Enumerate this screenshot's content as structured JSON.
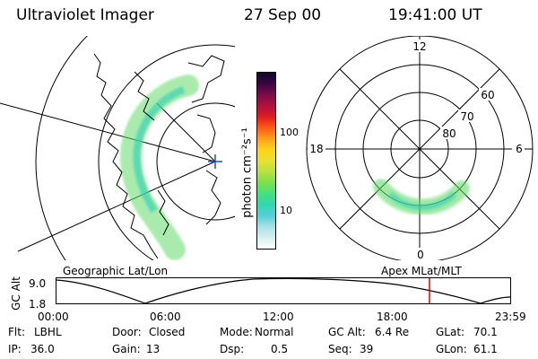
{
  "header": {
    "instrument": "Ultraviolet Imager",
    "date": "27 Sep 00",
    "time": "19:41:00 UT"
  },
  "colorbar": {
    "unit_label": "photon cm⁻²s⁻¹",
    "ticks": [
      "100",
      "10"
    ],
    "colors": [
      "#ffffff",
      "#d8eef0",
      "#a8e0e6",
      "#55cfd8",
      "#33d6b0",
      "#44e080",
      "#7be04c",
      "#b8e040",
      "#e8e030",
      "#ffd21a",
      "#ffa01a",
      "#ff5a14",
      "#e01a20",
      "#b01040",
      "#7a0c48",
      "#3a0640",
      "#12062a"
    ]
  },
  "left_panel": {
    "label": "Geographic Lat/Lon"
  },
  "right_panel": {
    "label": "Apex MLat/MLT",
    "mlt_labels": [
      "12",
      "18",
      "6",
      "0"
    ],
    "lat_labels": [
      "60",
      "70",
      "80"
    ]
  },
  "altitude_plot": {
    "ylabel": "GC Alt",
    "yticks": [
      "9.0",
      "1.8"
    ],
    "xticks": [
      "00:00",
      "06:00",
      "12:00",
      "18:00",
      "23:59"
    ],
    "marker_color": "#e00000"
  },
  "status": {
    "row1": [
      {
        "label": "Flt:",
        "value": "LBHL"
      },
      {
        "label": "Door:",
        "value": "Closed"
      },
      {
        "label": "Mode:",
        "value": "Normal"
      },
      {
        "label": "GC Alt:",
        "value": "6.4 Re"
      },
      {
        "label": "GLat:",
        "value": "70.1"
      }
    ],
    "row2": [
      {
        "label": "IP:",
        "value": "36.0"
      },
      {
        "label": "Gain:",
        "value": "13"
      },
      {
        "label": "Dsp:",
        "value": "0.5"
      },
      {
        "label": "Seq:",
        "value": "39"
      },
      {
        "label": "GLon:",
        "value": "61.1"
      }
    ]
  }
}
